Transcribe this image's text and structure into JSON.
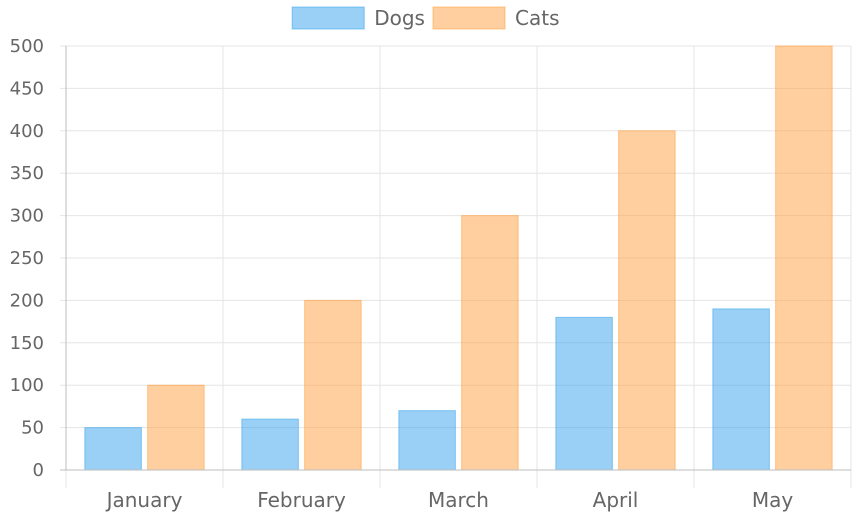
{
  "chart_data": {
    "type": "bar",
    "title": "",
    "xlabel": "",
    "ylabel": "",
    "categories": [
      "January",
      "February",
      "March",
      "April",
      "May"
    ],
    "series": [
      {
        "name": "Dogs",
        "values": [
          50,
          60,
          70,
          180,
          190
        ],
        "color": "#36a2eb"
      },
      {
        "name": "Cats",
        "values": [
          100,
          200,
          300,
          400,
          500
        ],
        "color": "#ff9f40"
      }
    ],
    "ylim": [
      0,
      500
    ],
    "y_ticks": [
      "0",
      "50",
      "100",
      "150",
      "200",
      "250",
      "300",
      "350",
      "400",
      "450",
      "500"
    ],
    "grid": true,
    "legend_position": "top"
  },
  "colors": {
    "text": "#666666",
    "grid": "#e5e5e5",
    "axis": "#bdbdbd"
  }
}
